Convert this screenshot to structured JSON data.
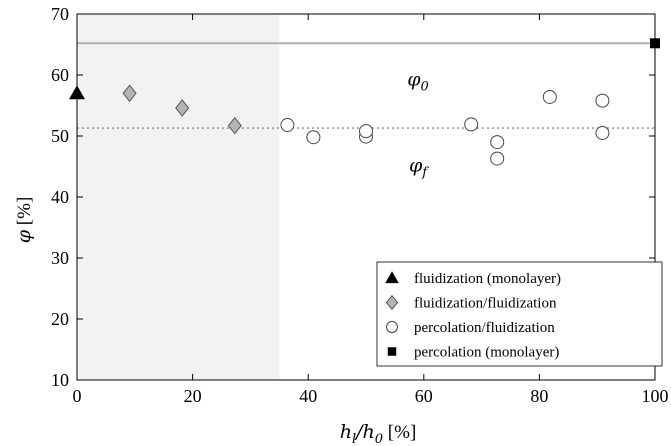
{
  "chart_data": {
    "type": "scatter",
    "xlabel": "h_l/h_0 [%]",
    "ylabel": "φ [%]",
    "xlim": [
      0,
      100
    ],
    "ylim": [
      10,
      70
    ],
    "xticks": [
      0,
      20,
      40,
      60,
      80,
      100
    ],
    "yticks": [
      10,
      20,
      30,
      40,
      50,
      60,
      70
    ],
    "grid": false,
    "legend_position": "bottom-right",
    "shaded_region": {
      "x": [
        0,
        35
      ],
      "color": "#f2f2f2"
    },
    "reference_lines": [
      {
        "label": "φ0",
        "y": 65.2,
        "style": "solid",
        "color": "#b0b0b0"
      },
      {
        "label": "φf",
        "y": 51.3,
        "style": "dotted",
        "color": "#888888"
      }
    ],
    "annotations": [
      {
        "text_main": "φ",
        "text_sub": "0",
        "x": 59,
        "y": 58.3
      },
      {
        "text_main": "φ",
        "text_sub": "f",
        "x": 59,
        "y": 44.2
      }
    ],
    "series": [
      {
        "name": "fluidization (monolayer)",
        "marker": "triangle",
        "color": "#000000",
        "points": [
          [
            0,
            57.0
          ]
        ]
      },
      {
        "name": "fluidization/fluidization",
        "marker": "diamond",
        "color": "#b4b4b4",
        "points": [
          [
            9.1,
            57.0
          ],
          [
            18.2,
            54.6
          ],
          [
            27.3,
            51.7
          ]
        ]
      },
      {
        "name": "percolation/fluidization",
        "marker": "circle",
        "color": "#ffffff",
        "points": [
          [
            36.4,
            51.8
          ],
          [
            40.9,
            49.8
          ],
          [
            50.0,
            49.9
          ],
          [
            50.0,
            50.8
          ],
          [
            68.2,
            51.9
          ],
          [
            72.7,
            49.0
          ],
          [
            72.7,
            46.3
          ],
          [
            81.8,
            56.4
          ],
          [
            90.9,
            55.8
          ],
          [
            90.9,
            50.5
          ]
        ]
      },
      {
        "name": "percolation (monolayer)",
        "marker": "square",
        "color": "#000000",
        "points": [
          [
            100,
            65.2
          ]
        ]
      }
    ]
  }
}
